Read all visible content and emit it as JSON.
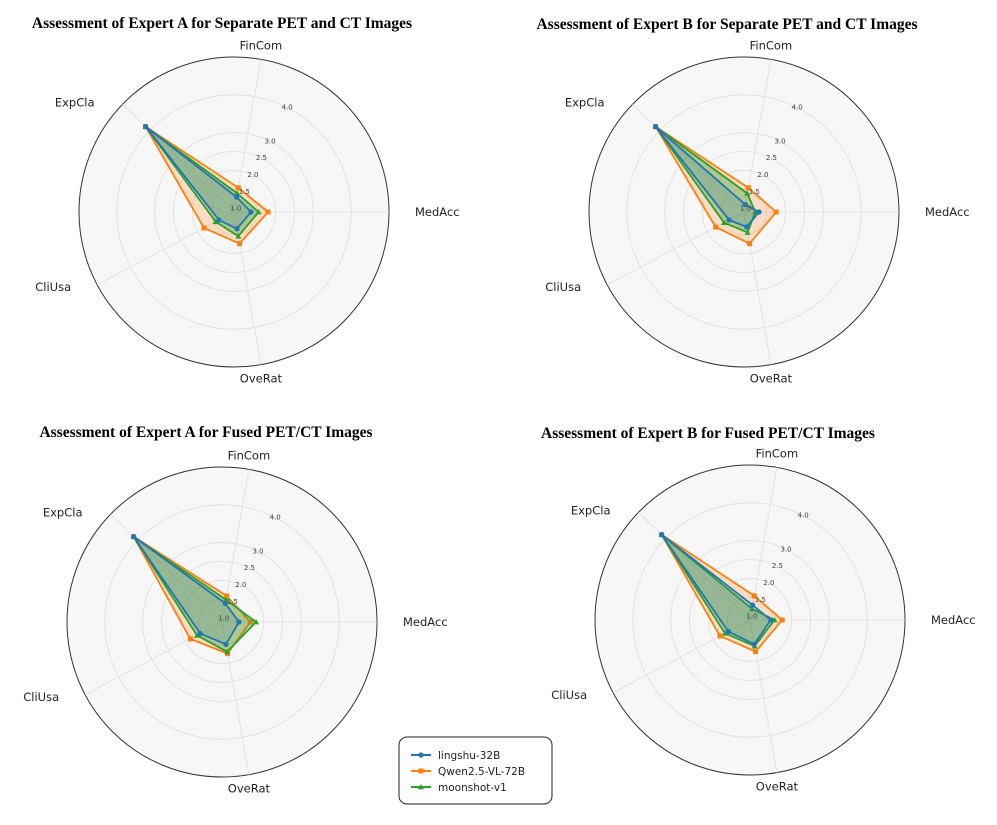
{
  "chart_data": {
    "type": "radar",
    "axes": [
      "FinCom",
      "MedAcc",
      "OveRat",
      "CliUsa",
      "ExpCla"
    ],
    "rlim": [
      0.9,
      5.0
    ],
    "ticks": [
      1.0,
      1.5,
      2.0,
      2.5,
      3.0,
      4.0
    ],
    "tick_labels": [
      "1.0",
      "1.5",
      "2.0",
      "2.5",
      "3.0",
      "4.0"
    ],
    "colors": {
      "lingshu-32B": "#1f77b4",
      "Qwen2.5-VL-72B": "#ff7f0e",
      "moonshot-v1": "#2ca02c"
    },
    "legend": {
      "placement": "bottom-center",
      "entries": [
        "lingshu-32B",
        "Qwen2.5-VL-72B",
        "moonshot-v1"
      ]
    },
    "charts": [
      {
        "title": "Assessment of Expert A for Separate PET and CT Images",
        "series": [
          {
            "name": "lingshu-32B",
            "values": [
              1.3,
              1.35,
              1.35,
              1.35,
              4.15
            ]
          },
          {
            "name": "Qwen2.5-VL-72B",
            "values": [
              1.55,
              1.8,
              1.75,
              1.8,
              4.15
            ]
          },
          {
            "name": "moonshot-v1",
            "values": [
              1.4,
              1.55,
              1.55,
              1.45,
              4.15
            ]
          }
        ]
      },
      {
        "title": "Assessment of Expert B for Separate PET and CT Images",
        "series": [
          {
            "name": "lingshu-32B",
            "values": [
              1.1,
              1.3,
              1.3,
              1.35,
              4.15
            ]
          },
          {
            "name": "Qwen2.5-VL-72B",
            "values": [
              1.55,
              1.75,
              1.75,
              1.75,
              4.15
            ]
          },
          {
            "name": "moonshot-v1",
            "values": [
              1.4,
              1.2,
              1.45,
              1.5,
              4.15
            ]
          }
        ]
      },
      {
        "title": "Assessment of Expert A for Fused PET/CT Images",
        "series": [
          {
            "name": "lingshu-32B",
            "values": [
              1.4,
              1.35,
              1.5,
              1.55,
              4.15
            ]
          },
          {
            "name": "Qwen2.5-VL-72B",
            "values": [
              1.6,
              1.65,
              1.75,
              1.85,
              4.15
            ]
          },
          {
            "name": "moonshot-v1",
            "values": [
              1.5,
              1.8,
              1.7,
              1.65,
              4.15
            ]
          }
        ]
      },
      {
        "title": "Assessment of Expert B for Fused PET/CT Images",
        "series": [
          {
            "name": "lingshu-32B",
            "values": [
              1.3,
              1.45,
              1.55,
              1.55,
              4.15
            ]
          },
          {
            "name": "Qwen2.5-VL-72B",
            "values": [
              1.55,
              1.75,
              1.75,
              1.8,
              4.15
            ]
          },
          {
            "name": "moonshot-v1",
            "values": [
              1.2,
              1.55,
              1.6,
              1.65,
              4.15
            ]
          }
        ]
      }
    ]
  }
}
